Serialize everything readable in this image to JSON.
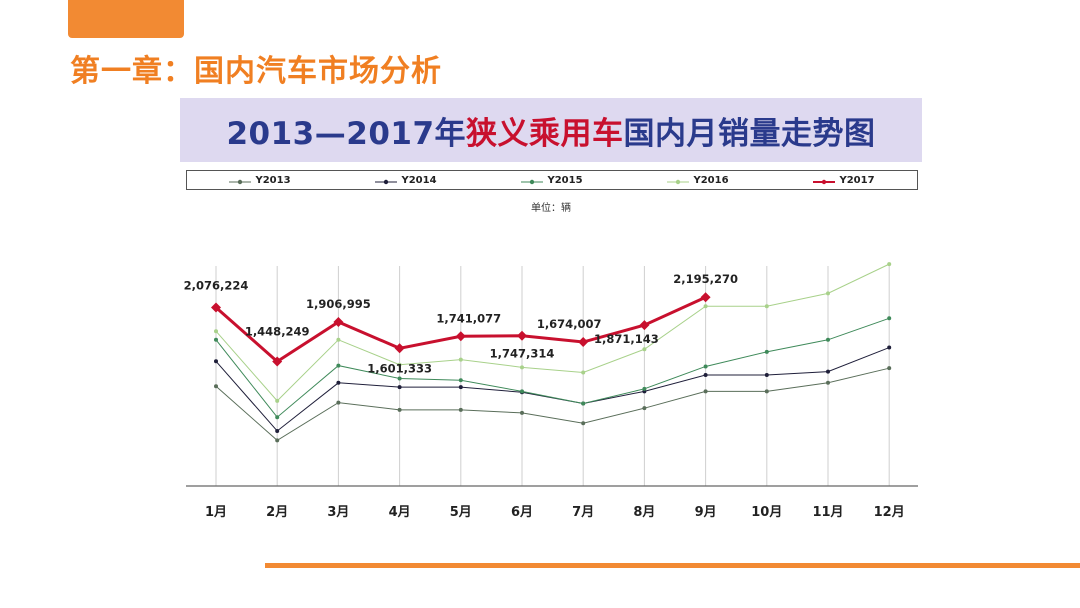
{
  "page": {
    "heading": "第一章：国内汽车市场分析"
  },
  "colors": {
    "accent": "#f28a33",
    "title_blue": "#2a3a8c",
    "title_red": "#c8102e",
    "banner": "#ded9f0"
  },
  "chart_data": {
    "type": "line",
    "title_part1": "2013—2017年",
    "title_part2": "狭义乘用车",
    "title_part3": "国内月销量走势图",
    "unit": "单位：辆",
    "categories": [
      "1月",
      "2月",
      "3月",
      "4月",
      "5月",
      "6月",
      "7月",
      "8月",
      "9月",
      "10月",
      "11月",
      "12月"
    ],
    "series": [
      {
        "name": "Y2013",
        "color": "#5a6e5a",
        "width": 1,
        "values": [
          1160000,
          530000,
          970000,
          885000,
          885000,
          850000,
          730000,
          905000,
          1100000,
          1100000,
          1200000,
          1370000
        ]
      },
      {
        "name": "Y2014",
        "color": "#1f1f3a",
        "width": 1,
        "values": [
          1450000,
          640000,
          1200000,
          1150000,
          1150000,
          1090000,
          960000,
          1100000,
          1290000,
          1290000,
          1330000,
          1610000
        ]
      },
      {
        "name": "Y2015",
        "color": "#3f8a5a",
        "width": 1,
        "values": [
          1700000,
          800000,
          1400000,
          1250000,
          1230000,
          1100000,
          960000,
          1130000,
          1390000,
          1560000,
          1700000,
          1950000
        ]
      },
      {
        "name": "Y2016",
        "color": "#a8d18a",
        "width": 1,
        "values": [
          1800000,
          990000,
          1700000,
          1410000,
          1470000,
          1380000,
          1320000,
          1590000,
          2090000,
          2090000,
          2240000,
          2580000
        ]
      },
      {
        "name": "Y2017",
        "color": "#c8102e",
        "width": 3,
        "values": [
          2076224,
          1448249,
          1906995,
          1601333,
          1741077,
          1747314,
          1674007,
          1871143,
          2195270,
          null,
          null,
          null
        ]
      }
    ],
    "data_labels": [
      {
        "series": "Y2017",
        "index": 0,
        "text": "2,076,224"
      },
      {
        "series": "Y2017",
        "index": 1,
        "text": "1,448,249"
      },
      {
        "series": "Y2017",
        "index": 2,
        "text": "1,906,995"
      },
      {
        "series": "Y2017",
        "index": 3,
        "text": "1,601,333"
      },
      {
        "series": "Y2017",
        "index": 4,
        "text": "1,741,077"
      },
      {
        "series": "Y2017",
        "index": 5,
        "text": "1,747,314"
      },
      {
        "series": "Y2017",
        "index": 6,
        "text": "1,674,007"
      },
      {
        "series": "Y2017",
        "index": 7,
        "text": "1,871,143"
      },
      {
        "series": "Y2017",
        "index": 8,
        "text": "2,195,270"
      }
    ],
    "ylim": [
      0,
      3000000
    ],
    "grid": "vertical",
    "legend_position": "top"
  }
}
